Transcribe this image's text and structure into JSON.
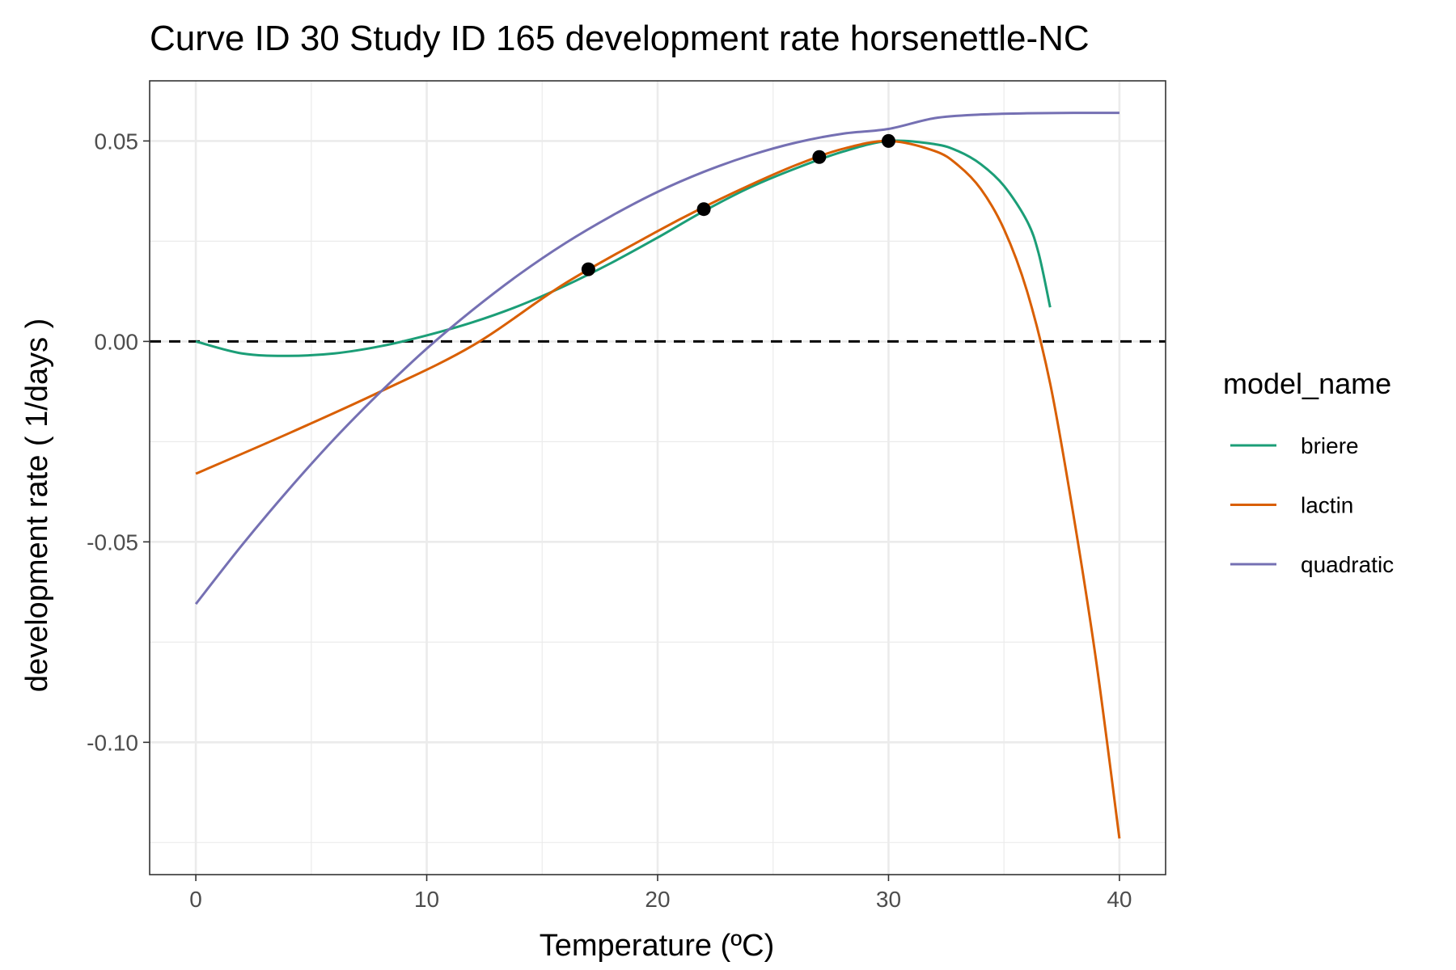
{
  "chart_data": {
    "type": "line",
    "title": "Curve ID 30 Study ID 165 development rate horsenettle-NC",
    "xlabel": "Temperature (ºC)",
    "ylabel": "development rate ( 1/days )",
    "xlim": [
      -2,
      42
    ],
    "ylim": [
      -0.133,
      0.065
    ],
    "x_ticks": [
      0,
      10,
      20,
      30,
      40
    ],
    "x_tick_labels": [
      "0",
      "10",
      "20",
      "30",
      "40"
    ],
    "y_ticks": [
      -0.1,
      -0.05,
      0.0,
      0.05
    ],
    "y_tick_labels": [
      "-0.10",
      "-0.05",
      "0.00",
      "0.05"
    ],
    "grid": true,
    "reference_line": {
      "y": 0,
      "style": "dashed"
    },
    "legend": {
      "title": "model_name",
      "placement": "right"
    },
    "points": {
      "x": [
        17,
        22,
        27,
        30
      ],
      "y": [
        0.018,
        0.033,
        0.046,
        0.05
      ]
    },
    "series": [
      {
        "name": "briere",
        "color": "#1b9e77",
        "x": [
          0,
          2,
          4,
          6,
          8,
          10,
          12,
          14,
          16,
          18,
          20,
          22,
          24,
          26,
          28,
          30,
          32,
          33,
          34,
          35,
          36,
          36.5,
          37
        ],
        "y": [
          0.0,
          -0.003,
          -0.0036,
          -0.003,
          -0.0012,
          0.0015,
          0.0048,
          0.0089,
          0.0139,
          0.0196,
          0.0259,
          0.0325,
          0.0384,
          0.0432,
          0.0473,
          0.05,
          0.0492,
          0.0475,
          0.0442,
          0.0388,
          0.03,
          0.022,
          0.0085
        ]
      },
      {
        "name": "lactin",
        "color": "#d95f02",
        "x": [
          0,
          4,
          8,
          12,
          16,
          20,
          22,
          24,
          26,
          28,
          30,
          32,
          33,
          34,
          35,
          36,
          37,
          38,
          39,
          40
        ],
        "y": [
          -0.033,
          -0.023,
          -0.0125,
          -0.001,
          0.0145,
          0.0275,
          0.0335,
          0.039,
          0.044,
          0.048,
          0.05,
          0.0475,
          0.044,
          0.038,
          0.028,
          0.0125,
          -0.0105,
          -0.043,
          -0.08,
          -0.124
        ]
      },
      {
        "name": "quadratic",
        "color": "#7570b3",
        "x": [
          0,
          2,
          4,
          6,
          8,
          10,
          12,
          14,
          16,
          18,
          20,
          22,
          24,
          26,
          28,
          30,
          32,
          34,
          36,
          38,
          40
        ],
        "y": [
          -0.0655,
          -0.0508,
          -0.0371,
          -0.0243,
          -0.0126,
          -0.0018,
          0.0079,
          0.0167,
          0.0245,
          0.0313,
          0.0373,
          0.0423,
          0.0464,
          0.0496,
          0.0518,
          0.053,
          0.0557,
          0.0566,
          0.0569,
          0.057,
          0.057
        ]
      }
    ]
  }
}
